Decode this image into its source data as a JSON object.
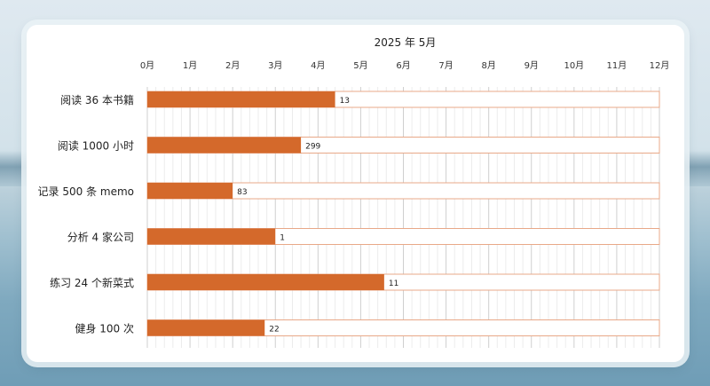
{
  "chart_data": {
    "type": "bar",
    "orientation": "horizontal",
    "title": "2025 年 5月",
    "xlabel": "",
    "ylabel": "",
    "x_ticks": [
      "0月",
      "1月",
      "2月",
      "3月",
      "4月",
      "5月",
      "6月",
      "7月",
      "8月",
      "9月",
      "10月",
      "11月",
      "12月"
    ],
    "xlim": [
      0,
      12
    ],
    "categories": [
      "阅读 36 本书籍",
      "阅读 1000 小时",
      "记录 500 条 memo",
      "分析 4 家公司",
      "练习 24 个新菜式",
      "健身 100 次"
    ],
    "values": [
      4.4,
      3.6,
      2.0,
      3.0,
      5.55,
      2.75
    ],
    "data_labels": [
      "13",
      "299",
      "83",
      "1",
      "11",
      "22"
    ],
    "target": 12,
    "colors": {
      "bar": "#d4692b",
      "target_outline": "#e8a888",
      "grid": "#dcdcdc"
    },
    "grid": true,
    "legend": "none"
  }
}
